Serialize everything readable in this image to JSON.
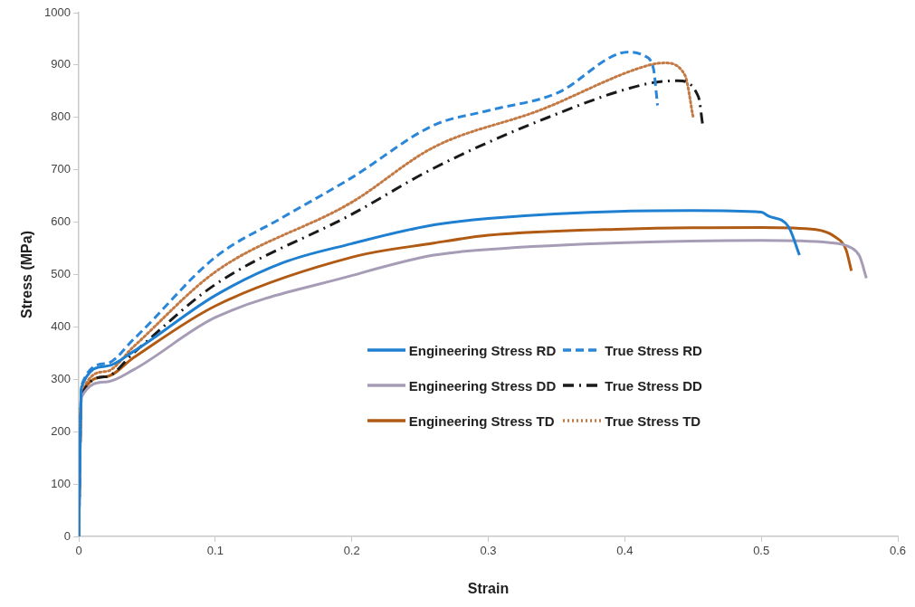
{
  "chart_data": {
    "type": "line",
    "xlabel": "Strain",
    "ylabel": "Stress (MPa)",
    "xlim": [
      0,
      0.6
    ],
    "xticks": [
      0,
      0.1,
      0.2,
      0.3,
      0.4,
      0.5,
      0.6
    ],
    "ylim": [
      0,
      1000
    ],
    "yticks": [
      0,
      100,
      200,
      300,
      400,
      500,
      600,
      700,
      800,
      900,
      1000
    ],
    "grid": false,
    "legend": "right",
    "marker": "none",
    "series": [
      {
        "name": "Engineering Stress RD",
        "color": "#1f7fd0",
        "line_style": "solid",
        "x": [
          0,
          0.002,
          0.02,
          0.04,
          0.1,
          0.15,
          0.2,
          0.256,
          0.3,
          0.4,
          0.45,
          0.5,
          0.505,
          0.52,
          0.528
        ],
        "values": [
          0,
          285,
          325,
          353,
          460,
          523,
          559,
          593,
          607,
          621,
          622,
          619,
          612,
          591,
          537
        ]
      },
      {
        "name": "True Stress RD",
        "color": "#2a86d8",
        "line_style": "dashed",
        "x": [
          0,
          0.002,
          0.02,
          0.04,
          0.1,
          0.15,
          0.2,
          0.26,
          0.3,
          0.35,
          0.403,
          0.414,
          0.421,
          0.424
        ],
        "values": [
          0,
          288,
          330,
          376,
          533,
          610,
          685,
          785,
          813,
          846,
          925,
          918,
          893,
          823
        ]
      },
      {
        "name": "Engineering Stress DD",
        "color": "#a69cb6",
        "line_style": "solid",
        "x": [
          0,
          0.002,
          0.02,
          0.04,
          0.1,
          0.2,
          0.26,
          0.3,
          0.4,
          0.5,
          0.55,
          0.566,
          0.572,
          0.577
        ],
        "values": [
          0,
          266,
          295,
          318,
          418,
          498,
          537,
          548,
          561,
          565,
          561,
          551,
          535,
          493
        ]
      },
      {
        "name": "True Stress DD",
        "color": "#1a1a1a",
        "line_style": "dashdot",
        "x": [
          0,
          0.002,
          0.02,
          0.04,
          0.1,
          0.2,
          0.26,
          0.337,
          0.416,
          0.439,
          0.454,
          0.457
        ],
        "values": [
          0,
          268,
          305,
          350,
          481,
          615,
          703,
          793,
          864,
          870,
          839,
          787
        ]
      },
      {
        "name": "Engineering Stress TD",
        "color": "#b05a14",
        "line_style": "solid",
        "x": [
          0,
          0.002,
          0.02,
          0.04,
          0.1,
          0.2,
          0.26,
          0.3,
          0.4,
          0.5,
          0.54,
          0.554,
          0.562,
          0.566
        ],
        "values": [
          0,
          270,
          305,
          341,
          440,
          533,
          560,
          575,
          587,
          590,
          586,
          572,
          548,
          507
        ]
      },
      {
        "name": "True Stress TD",
        "color": "#c47a44",
        "line_style": "dotted",
        "x": [
          0,
          0.002,
          0.02,
          0.04,
          0.1,
          0.2,
          0.26,
          0.337,
          0.418,
          0.429,
          0.444,
          0.45
        ],
        "values": [
          0,
          272,
          315,
          362,
          505,
          638,
          743,
          813,
          900,
          904,
          881,
          802
        ]
      }
    ]
  }
}
